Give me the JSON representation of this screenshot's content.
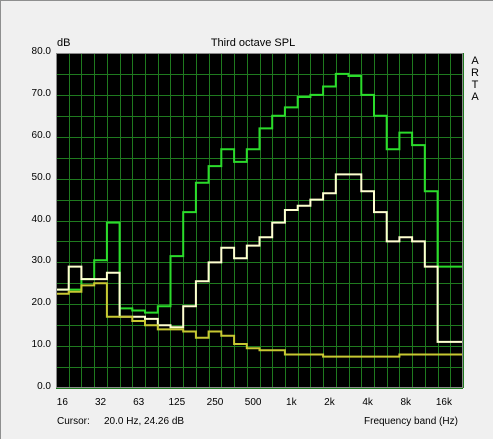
{
  "chart_data": {
    "type": "line",
    "title": "Third octave SPL",
    "ylabel": "dB",
    "xlabel": "Frequency band (Hz)",
    "ylim": [
      0,
      80
    ],
    "yticks": [
      "0.0",
      "10.0",
      "20.0",
      "30.0",
      "40.0",
      "50.0",
      "60.0",
      "70.0",
      "80.0"
    ],
    "xtick_labels": [
      "16",
      "32",
      "63",
      "125",
      "250",
      "500",
      "1k",
      "2k",
      "4k",
      "8k",
      "16k"
    ],
    "x_scale": "log",
    "grid": true,
    "background": "#000000",
    "grid_color": "#1f7a1f",
    "x": [
      "16",
      "20",
      "25",
      "31.5",
      "40",
      "50",
      "63",
      "80",
      "100",
      "125",
      "160",
      "200",
      "250",
      "315",
      "400",
      "500",
      "630",
      "800",
      "1k",
      "1.25k",
      "1.6k",
      "2k",
      "2.5k",
      "3.15k",
      "4k",
      "5k",
      "6.3k",
      "8k",
      "10k",
      "12.5k",
      "16k",
      "20k"
    ],
    "series": [
      {
        "color": "#2bdc2b",
        "values": [
          23.5,
          23.5,
          26,
          30.5,
          39.5,
          19,
          18.5,
          18,
          19.5,
          31.5,
          42,
          49,
          53,
          57,
          54,
          57,
          62,
          65,
          67,
          69.5,
          70,
          72,
          75,
          74.5,
          70,
          65,
          57,
          61,
          58,
          47,
          29,
          29
        ]
      },
      {
        "color": "#ffffd0",
        "values": [
          23.5,
          29,
          26,
          26,
          27.5,
          17,
          17,
          16.5,
          15,
          14.5,
          19.5,
          25.5,
          30,
          33.5,
          31,
          34,
          36,
          39.5,
          42.5,
          43.5,
          45,
          46.5,
          51,
          51,
          47,
          42,
          35,
          36,
          35,
          29,
          11,
          11
        ]
      },
      {
        "color": "#c8c832",
        "values": [
          22.5,
          23,
          24.5,
          25,
          17,
          17,
          16,
          15,
          14,
          14,
          13.5,
          12,
          13.5,
          12.5,
          10.5,
          9.5,
          9,
          9,
          8,
          8,
          8,
          7.5,
          7.5,
          7.5,
          7.5,
          7.5,
          7.5,
          8,
          8,
          8,
          8,
          8
        ]
      }
    ]
  },
  "brand_letters": [
    "A",
    "R",
    "T",
    "A"
  ],
  "status": {
    "cursor_label": "Cursor:",
    "cursor_value": "20.0 Hz, 24.26 dB"
  }
}
